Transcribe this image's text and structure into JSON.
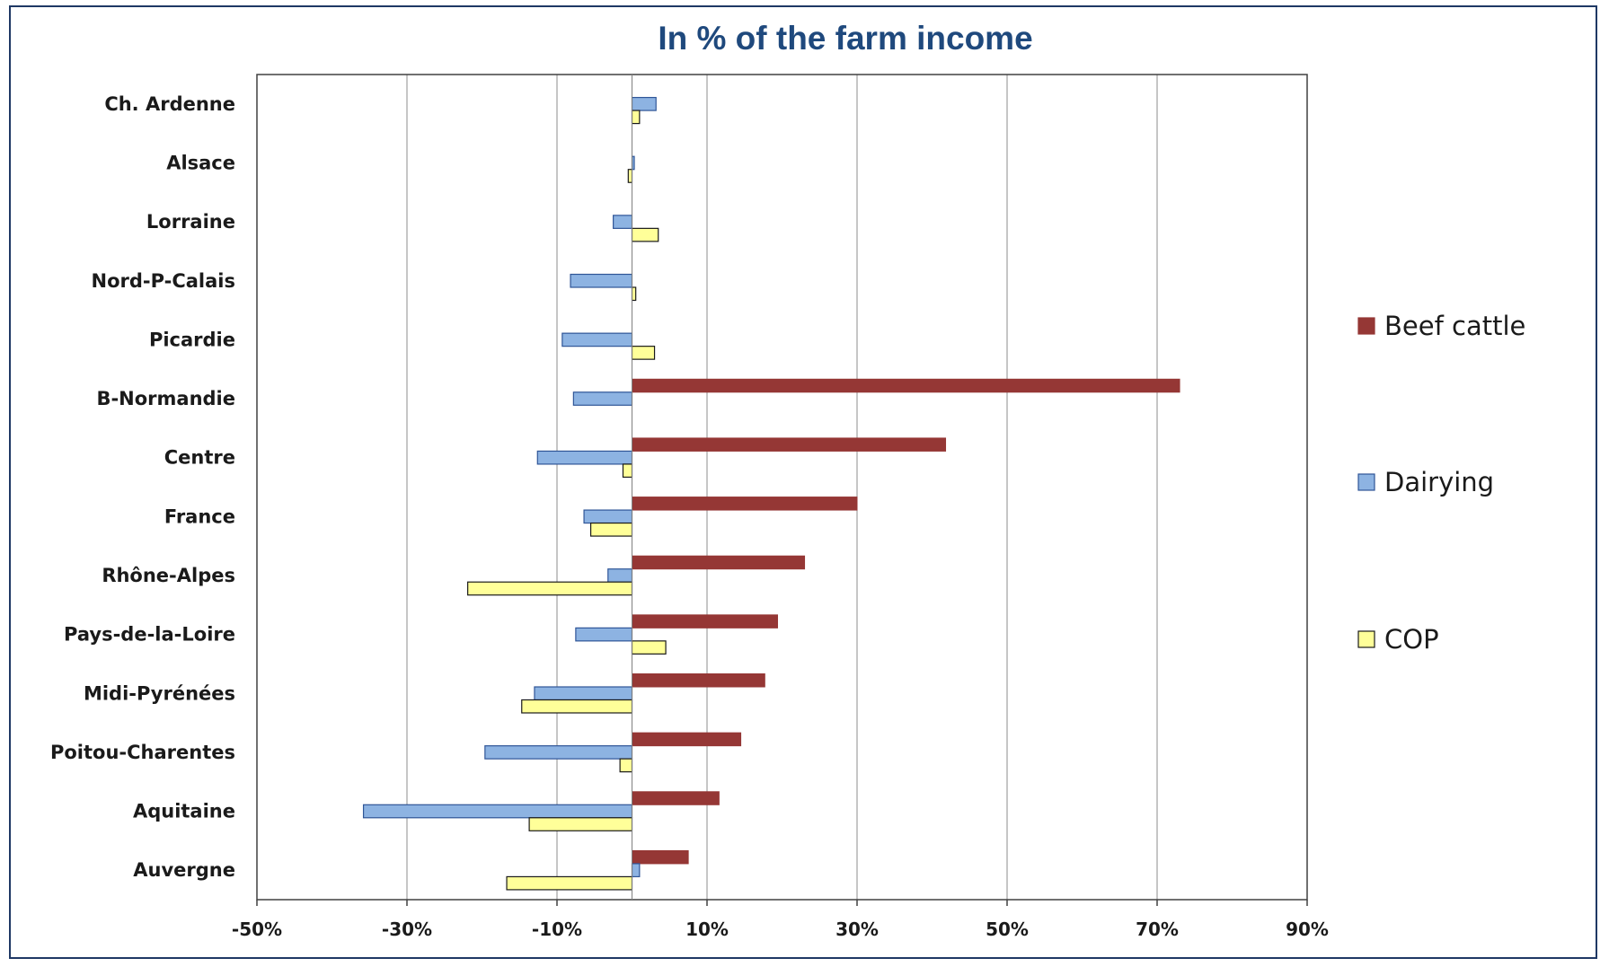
{
  "chart_data": {
    "type": "bar",
    "orientation": "horizontal",
    "title": "In % of the farm income",
    "categories": [
      "Ch. Ardenne",
      "Alsace",
      "Lorraine",
      "Nord-P-Calais",
      "Picardie",
      "B-Normandie",
      "Centre",
      "France",
      "Rhône-Alpes",
      "Pays-de-la-Loire",
      "Midi-Pyrénées",
      "Poitou-Charentes",
      "Aquitaine",
      "Auvergne"
    ],
    "series": [
      {
        "name": "Beef cattle",
        "color": "#953735",
        "values": [
          null,
          null,
          null,
          null,
          null,
          73,
          41.8,
          30,
          23,
          19.4,
          17.7,
          14.5,
          11.6,
          7.5
        ]
      },
      {
        "name": "Dairying",
        "color": "#8db3e2",
        "values": [
          3.2,
          0.3,
          -2.5,
          -8.2,
          -9.3,
          -7.8,
          -12.6,
          -6.4,
          -3.2,
          -7.5,
          -13,
          -19.6,
          -35.8,
          1
        ]
      },
      {
        "name": "COP",
        "color": "#ffff99",
        "values": [
          1,
          -0.5,
          3.5,
          0.5,
          3,
          null,
          -1.2,
          -5.5,
          -21.9,
          4.5,
          -14.7,
          -1.6,
          -13.7,
          -16.7
        ]
      }
    ],
    "xlim": [
      -50,
      90
    ],
    "x_ticks": [
      "-50%",
      "-30%",
      "-10%",
      "10%",
      "30%",
      "50%",
      "70%",
      "90%"
    ],
    "x_tick_values": [
      -50,
      -30,
      -10,
      10,
      30,
      50,
      70,
      90
    ],
    "xlabel": "",
    "ylabel": "",
    "grid": "vertical",
    "legend_position": "right"
  }
}
